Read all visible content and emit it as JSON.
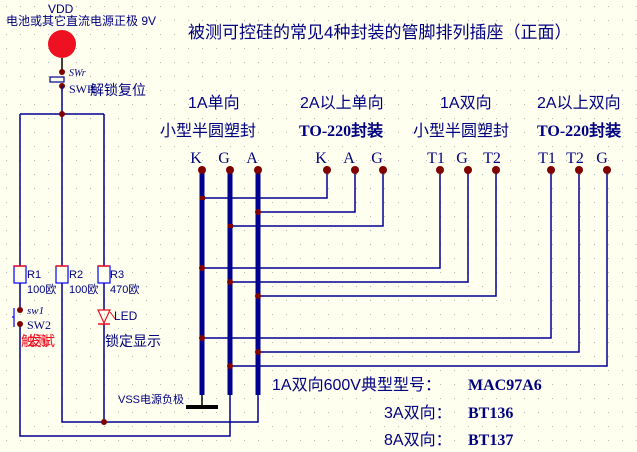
{
  "title": "被测可控硅的常见4种封装的管脚排列插座（正面）",
  "power": {
    "vdd": "VDD",
    "vdd_desc": "电池或其它直流电源正极 9V",
    "vss": "VSS电源负极"
  },
  "switches": {
    "swr_top": "SWr",
    "swr_bottom": "SWR",
    "reset_label": "解锁复位",
    "sw1": "sw1",
    "sw2": "SW2",
    "trigger_label": "触发测试"
  },
  "resistors": [
    {
      "name": "R1",
      "value": "100欧"
    },
    {
      "name": "R2",
      "value": "100欧"
    },
    {
      "name": "R3",
      "value": "470欧"
    }
  ],
  "led": {
    "name": "LED",
    "label": "锁定显示"
  },
  "packages": [
    {
      "line1": "1A单向",
      "line2": "小型半圆塑封",
      "pins": [
        "K",
        "G",
        "A"
      ]
    },
    {
      "line1": "2A以上单向",
      "line2": "TO-220封装",
      "pins": [
        "K",
        "A",
        "G"
      ]
    },
    {
      "line1": "1A双向",
      "line2": "小型半圆塑封",
      "pins": [
        "T1",
        "G",
        "T2"
      ]
    },
    {
      "line1": "2A以上双向",
      "line2": "TO-220封装",
      "pins": [
        "T1",
        "T2",
        "G"
      ]
    }
  ],
  "notes": [
    {
      "label": "1A双向600V典型型号：",
      "model": "MAC97A6"
    },
    {
      "label": "3A双向：",
      "model": "BT136"
    },
    {
      "label": "8A双向：",
      "model": "BT137"
    }
  ],
  "colors": {
    "background": "#fffff0",
    "wire": "#000090",
    "junction": "#800000",
    "power_dot": "#ee1122",
    "trigger_text": "#ee1122"
  }
}
